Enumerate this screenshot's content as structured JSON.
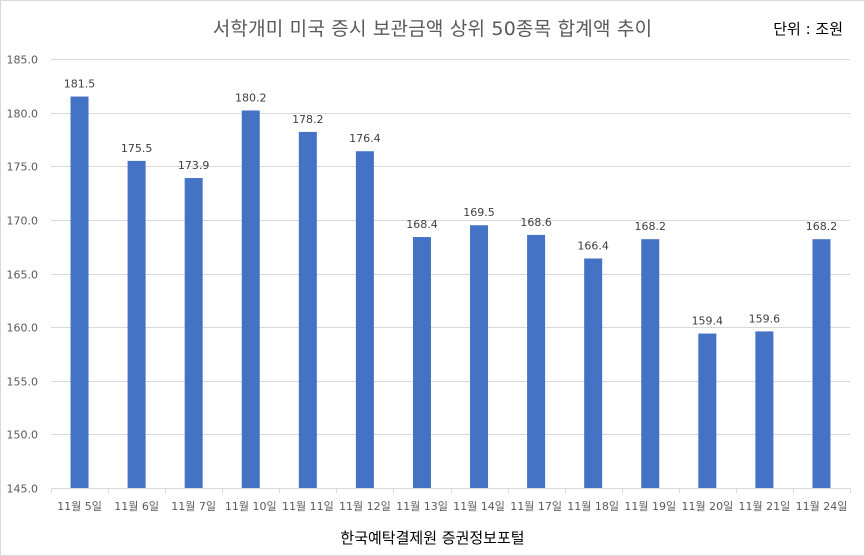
{
  "chart": {
    "title": "서학개미 미국 증시 보관금액 상위 50종목 합계액 추이",
    "unit_label": "단위 : 조원",
    "source_label": "한국예탁결제원 증권정보포털",
    "bar_color": "#4472c4",
    "grid_color": "#d9d9d9",
    "axis_text_color": "#595959"
  },
  "chart_data": {
    "type": "bar",
    "title": "서학개미 미국 증시 보관금액 상위 50종목 합계액 추이",
    "xlabel": "",
    "ylabel": "",
    "unit": "조원",
    "source": "한국예탁결제원 증권정보포털",
    "categories": [
      "11월 5일",
      "11월 6일",
      "11월 7일",
      "11월 10일",
      "11월 11일",
      "11월 12일",
      "11월 13일",
      "11월 14일",
      "11월 17일",
      "11월 18일",
      "11월 19일",
      "11월 20일",
      "11월 21일",
      "11월 24일"
    ],
    "values": [
      181.5,
      175.5,
      173.9,
      180.2,
      178.2,
      176.4,
      168.4,
      169.5,
      168.6,
      166.4,
      168.2,
      159.4,
      159.6,
      168.2
    ],
    "data_labels": [
      "181.5",
      "175.5",
      "173.9",
      "180.2",
      "178.2",
      "176.4",
      "168.4",
      "169.5",
      "168.6",
      "166.4",
      "168.2",
      "159.4",
      "159.6",
      "168.2"
    ],
    "ylim": [
      145.0,
      185.0
    ],
    "yticks": [
      "145.0",
      "150.0",
      "155.0",
      "160.0",
      "165.0",
      "170.0",
      "175.0",
      "180.0",
      "185.0"
    ],
    "grid": true,
    "legend": null
  }
}
